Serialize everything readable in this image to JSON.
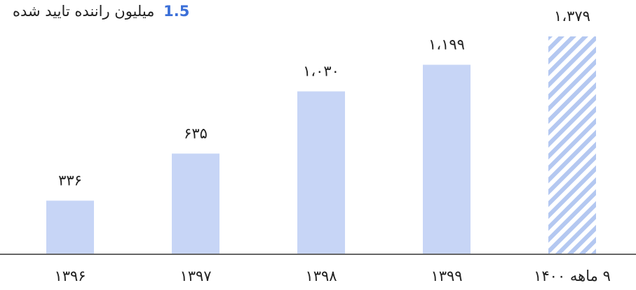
{
  "headline": {
    "number": "1.5",
    "text": "میلیون راننده تایید شده"
  },
  "colors": {
    "bar": "#c7d5f6",
    "hatch": "#b4c8f1",
    "accent": "#3b6fd8",
    "text": "#222222",
    "axis": "#333333"
  },
  "chart_data": {
    "type": "bar",
    "title": "",
    "xlabel": "",
    "ylabel": "",
    "ylim": [
      0,
      1379
    ],
    "grid": false,
    "legend": "none",
    "categories": [
      "۱۳۹۶",
      "۱۳۹۷",
      "۱۳۹۸",
      "۱۳۹۹",
      "۹ ماهه ۱۴۰۰"
    ],
    "values": [
      336,
      635,
      1030,
      1199,
      1379
    ],
    "data_labels": [
      "۳۳۶",
      "۶۳۵",
      "۱،۰۳۰",
      "۱،۱۹۹",
      "۱،۳۷۹"
    ],
    "hatched": [
      false,
      false,
      false,
      false,
      true
    ]
  }
}
